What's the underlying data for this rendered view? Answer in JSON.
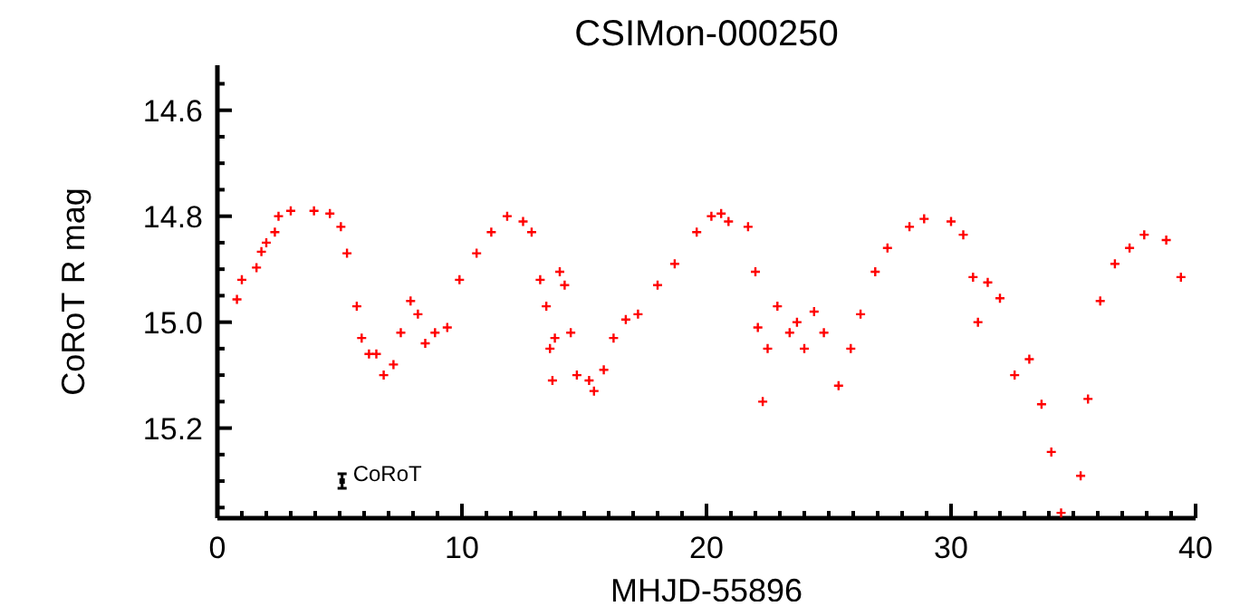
{
  "chart_data": {
    "type": "scatter",
    "title": "CSIMon-000250",
    "xlabel": "MHJD-55896",
    "ylabel": "CoRoT R mag",
    "marker": "cross",
    "grid": false,
    "legend": false,
    "xlim": [
      0,
      40
    ],
    "xticks": [
      0,
      {
        "value": 1,
        "label": null
      },
      {
        "value": 2,
        "label": null
      },
      {
        "value": 3,
        "label": null
      },
      {
        "value": 4,
        "label": null
      },
      {
        "value": 5,
        "label": null
      },
      {
        "value": 6,
        "label": null
      },
      {
        "value": 7,
        "label": null
      },
      {
        "value": 8,
        "label": null
      },
      {
        "value": 9,
        "label": null
      },
      10,
      {
        "value": 11,
        "label": null
      },
      {
        "value": 12,
        "label": null
      },
      {
        "value": 13,
        "label": null
      },
      {
        "value": 14,
        "label": null
      },
      {
        "value": 15,
        "label": null
      },
      {
        "value": 16,
        "label": null
      },
      {
        "value": 17,
        "label": null
      },
      {
        "value": 18,
        "label": null
      },
      {
        "value": 19,
        "label": null
      },
      20,
      {
        "value": 21,
        "label": null
      },
      {
        "value": 22,
        "label": null
      },
      {
        "value": 23,
        "label": null
      },
      {
        "value": 24,
        "label": null
      },
      {
        "value": 25,
        "label": null
      },
      {
        "value": 26,
        "label": null
      },
      {
        "value": 27,
        "label": null
      },
      {
        "value": 28,
        "label": null
      },
      {
        "value": 29,
        "label": null
      },
      30,
      {
        "value": 31,
        "label": null
      },
      {
        "value": 32,
        "label": null
      },
      {
        "value": 33,
        "label": null
      },
      {
        "value": 34,
        "label": null
      },
      {
        "value": 35,
        "label": null
      },
      {
        "value": 36,
        "label": null
      },
      {
        "value": 37,
        "label": null
      },
      {
        "value": 38,
        "label": null
      },
      {
        "value": 39,
        "label": null
      },
      40
    ],
    "ylim": [
      15.37,
      14.515
    ],
    "yticks": [
      {
        "value": 14.55,
        "label": null
      },
      14.6,
      {
        "value": 14.65,
        "label": null
      },
      {
        "value": 14.7,
        "label": null
      },
      {
        "value": 14.75,
        "label": null
      },
      14.8,
      {
        "value": 14.85,
        "label": null
      },
      {
        "value": 14.9,
        "label": null
      },
      {
        "value": 14.95,
        "label": null
      },
      {
        "value": 15,
        "label": "15.0"
      },
      {
        "value": 15.05,
        "label": null
      },
      {
        "value": 15.1,
        "label": null
      },
      {
        "value": 15.15,
        "label": null
      },
      15.2,
      {
        "value": 15.25,
        "label": null
      },
      {
        "value": 15.3,
        "label": null
      },
      {
        "value": 15.35,
        "label": null
      }
    ],
    "annotations": [
      {
        "text": "CoRoT",
        "x": 5.1,
        "y": 15.3
      }
    ],
    "series": [
      {
        "color": "#ff0000",
        "x": [
          0.8,
          1.0,
          1.6,
          1.8,
          2.0,
          2.35,
          2.5,
          3.0,
          3.95,
          4.6,
          5.05,
          5.3,
          5.7,
          5.9,
          6.2,
          6.5,
          6.8,
          7.2,
          7.5,
          7.9,
          8.2,
          8.5,
          8.9,
          9.4,
          9.9,
          10.6,
          11.2,
          11.85,
          12.5,
          12.85,
          13.2,
          13.45,
          13.6,
          13.7,
          13.8,
          14.0,
          14.2,
          14.45,
          14.7,
          15.2,
          15.4,
          15.8,
          16.2,
          16.7,
          17.2,
          18.0,
          18.7,
          19.6,
          20.2,
          20.6,
          20.9,
          21.7,
          22.0,
          22.1,
          22.3,
          22.5,
          22.9,
          23.4,
          23.7,
          24.0,
          24.4,
          24.8,
          25.4,
          25.9,
          26.3,
          26.9,
          27.4,
          28.3,
          28.9,
          30.0,
          30.5,
          30.9,
          31.1,
          31.5,
          32.0,
          32.6,
          33.2,
          33.7,
          34.1,
          34.5,
          35.3,
          35.6,
          36.1,
          36.7,
          37.3,
          37.9,
          38.8,
          39.4
        ],
        "values": [
          14.957,
          14.92,
          14.897,
          14.867,
          14.85,
          14.83,
          14.8,
          14.79,
          14.79,
          14.795,
          14.82,
          14.87,
          14.97,
          15.03,
          15.06,
          15.06,
          15.1,
          15.08,
          15.02,
          14.96,
          14.985,
          15.04,
          15.02,
          15.01,
          14.92,
          14.87,
          14.83,
          14.8,
          14.81,
          14.83,
          14.92,
          14.97,
          15.05,
          15.11,
          15.03,
          14.905,
          14.93,
          15.02,
          15.1,
          15.11,
          15.13,
          15.09,
          15.03,
          14.995,
          14.985,
          14.93,
          14.89,
          14.83,
          14.8,
          14.795,
          14.81,
          14.82,
          14.905,
          15.01,
          15.15,
          15.05,
          14.97,
          15.02,
          15.0,
          15.05,
          14.98,
          15.02,
          15.12,
          15.05,
          14.985,
          14.905,
          14.86,
          14.82,
          14.805,
          14.81,
          14.835,
          14.915,
          15.0,
          14.925,
          14.955,
          15.1,
          15.07,
          15.155,
          15.245,
          15.36,
          15.29,
          15.145,
          14.96,
          14.89,
          14.86,
          14.835,
          14.845,
          14.915
        ]
      }
    ]
  }
}
